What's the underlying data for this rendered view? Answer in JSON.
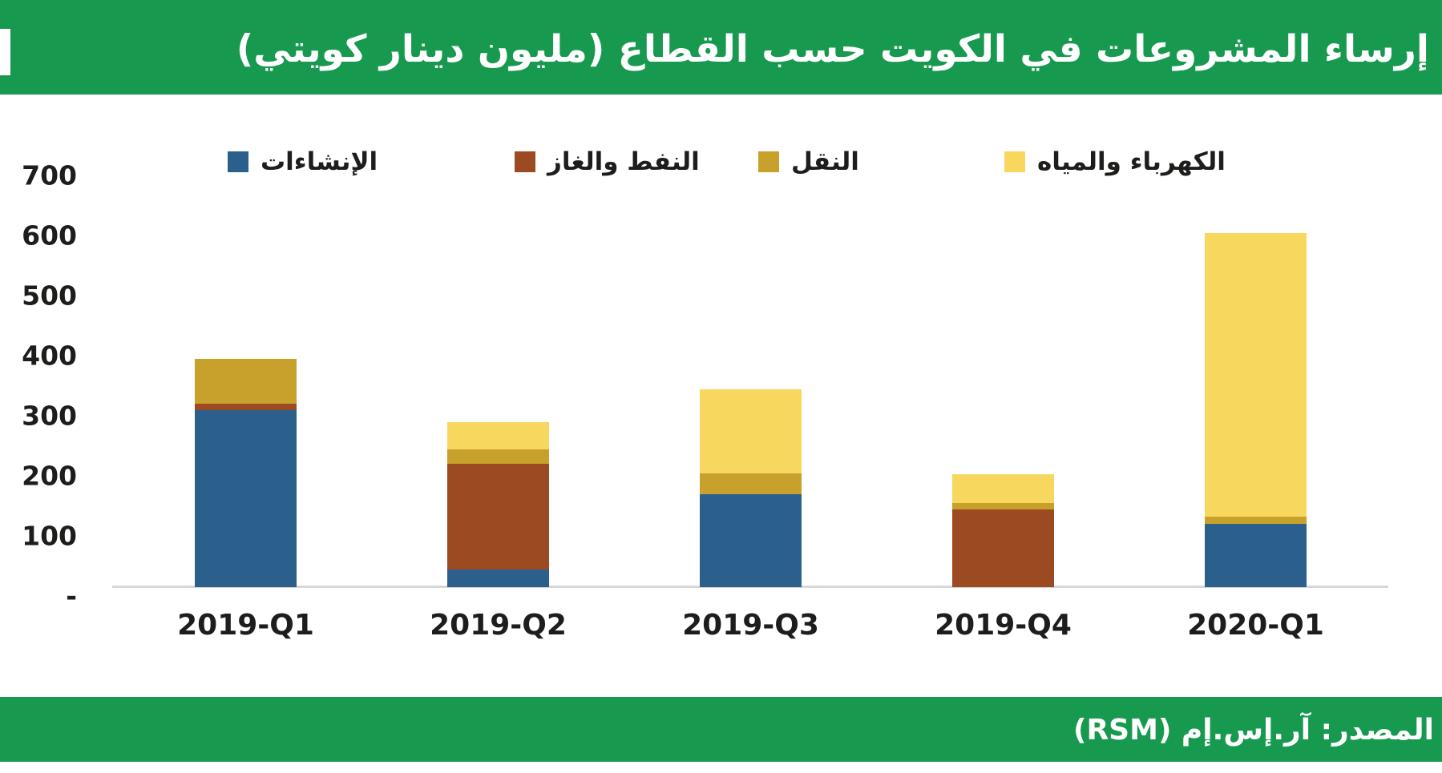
{
  "title": "إرساء المشروعات في الكويت حسب القطاع (مليون دينار كويتي)",
  "source": "المصدر: آر.إس.إم (RSM)",
  "colors": {
    "banner_green": "#179A4F",
    "construction_blue": "#2B608D",
    "oil_gas_brown": "#9C4A22",
    "transport_olive": "#C8A02C",
    "electricity_water_yellow": "#F8D75F",
    "axis_line_gray": "#D7D7D7",
    "text_dark": "#1D1D1B",
    "title_text": "#FFFFFF"
  },
  "chart_data": {
    "type": "bar",
    "stacked": true,
    "title": "إرساء المشروعات في الكويت حسب القطاع (مليون دينار كويتي)",
    "xlabel": "",
    "ylabel": "مليون دينار كويتي",
    "ylim": [
      0,
      700
    ],
    "grid": false,
    "legend_position": "top",
    "categories": [
      "2019-Q1",
      "2019-Q2",
      "2019-Q3",
      "2019-Q4",
      "2020-Q1"
    ],
    "series": [
      {
        "name": "الإنشاءات",
        "color_key": "construction_blue",
        "values": [
          295,
          30,
          155,
          0,
          105
        ]
      },
      {
        "name": "النفط والغاز",
        "color_key": "oil_gas_brown",
        "values": [
          10,
          175,
          0,
          130,
          0
        ]
      },
      {
        "name": "النقل",
        "color_key": "transport_olive",
        "values": [
          75,
          25,
          35,
          10,
          12
        ]
      },
      {
        "name": "الكهرباء والمياه",
        "color_key": "electricity_water_yellow",
        "values": [
          0,
          45,
          140,
          48,
          473
        ]
      }
    ],
    "totals": [
      380,
      275,
      330,
      188,
      590
    ],
    "ytick_values": [
      700,
      600,
      500,
      400,
      300,
      200,
      100,
      0
    ],
    "ytick_labels": [
      "700",
      "600",
      "500",
      "400",
      "300",
      "200",
      "100",
      "-"
    ]
  }
}
